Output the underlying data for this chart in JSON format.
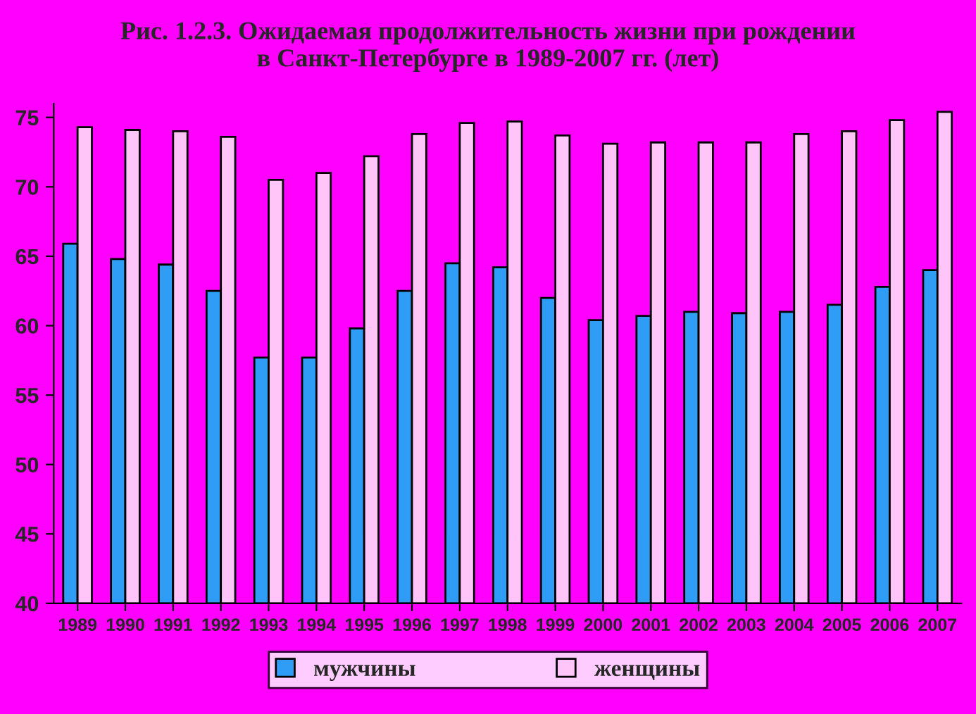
{
  "chart_data": {
    "type": "bar",
    "title": "Рис. 1.2.3. Ожидаемая продолжительность жизни при рождении\nв Санкт-Петербурге в 1989-2007 гг. (лет)",
    "categories": [
      "1989",
      "1990",
      "1991",
      "1992",
      "1993",
      "1994",
      "1995",
      "1996",
      "1997",
      "1998",
      "1999",
      "2000",
      "2001",
      "2002",
      "2003",
      "2004",
      "2005",
      "2006",
      "2007"
    ],
    "series": [
      {
        "name": "мужчины",
        "color": "#2f9cf6",
        "values": [
          65.9,
          64.8,
          64.4,
          62.5,
          57.7,
          57.7,
          59.8,
          62.5,
          64.5,
          64.2,
          62.0,
          60.4,
          60.7,
          61.0,
          60.9,
          61.0,
          61.5,
          62.8,
          64.0
        ]
      },
      {
        "name": "женщины",
        "color": "#ffc4f8",
        "values": [
          74.3,
          74.1,
          74.0,
          73.6,
          70.5,
          71.0,
          72.2,
          73.8,
          74.6,
          74.7,
          73.7,
          73.1,
          73.2,
          73.2,
          73.2,
          73.8,
          74.0,
          74.8,
          75.4
        ]
      }
    ],
    "ylim": [
      40,
      76
    ],
    "yticks": [
      40,
      45,
      50,
      55,
      60,
      65,
      70,
      75
    ],
    "grid": false,
    "legend": "bottom"
  }
}
